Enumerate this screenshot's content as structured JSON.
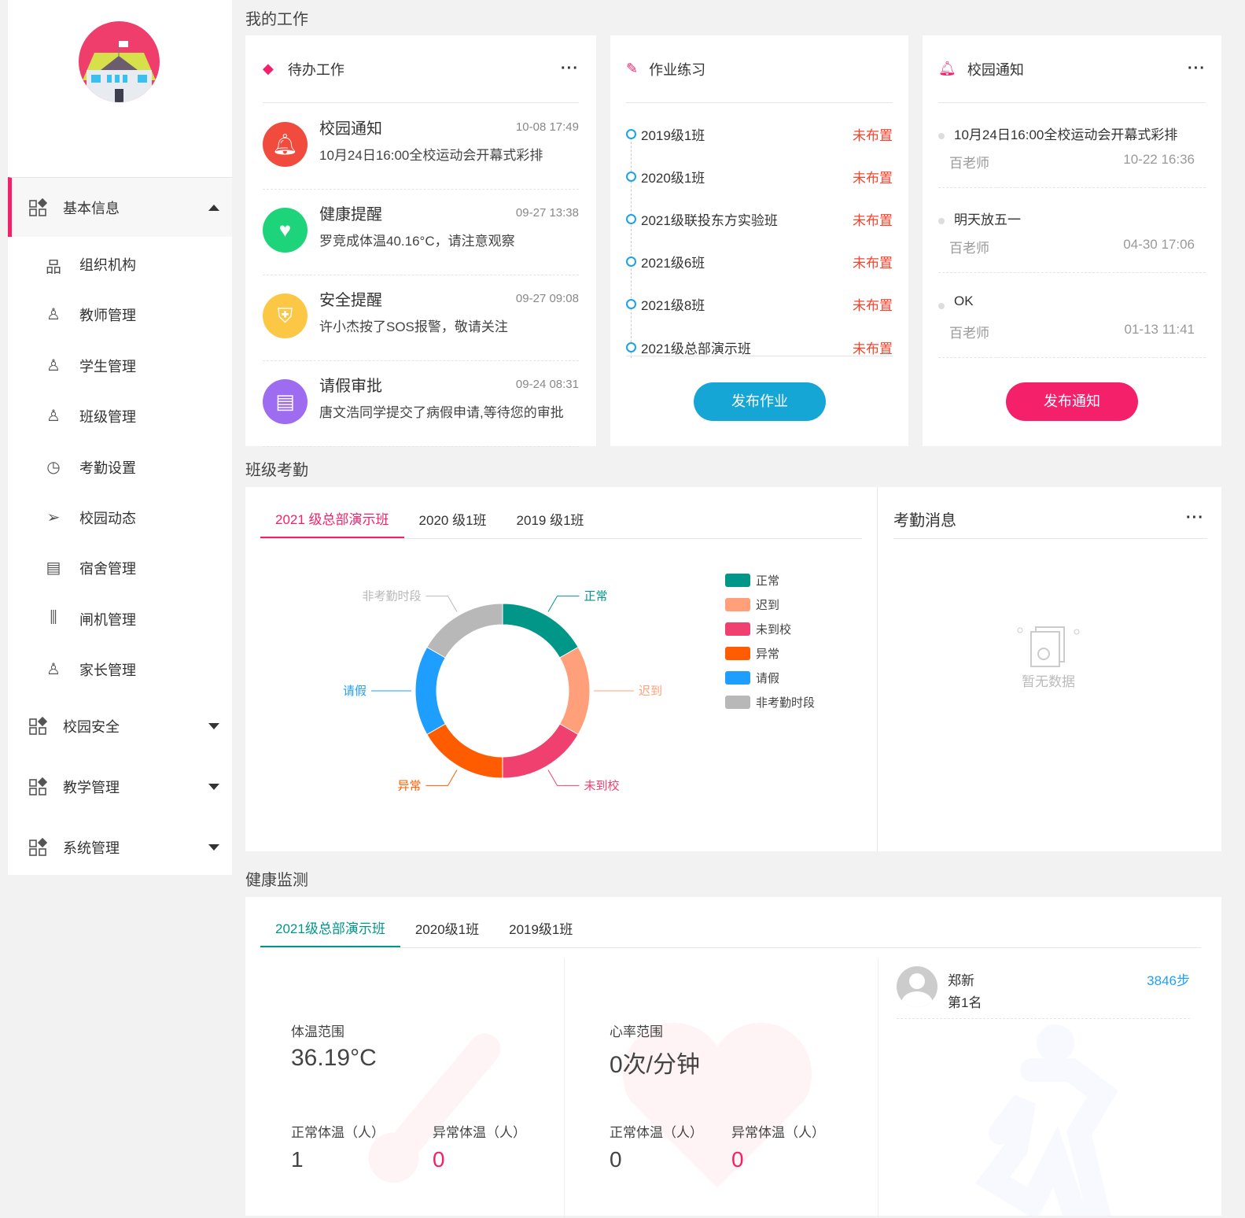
{
  "sidebar": {
    "groups": [
      {
        "label": "基本信息",
        "expanded": true
      },
      {
        "label": "校园安全",
        "expanded": false
      },
      {
        "label": "教学管理",
        "expanded": false
      },
      {
        "label": "系统管理",
        "expanded": false
      }
    ],
    "items": [
      {
        "label": "组织机构",
        "icon": "org-icon"
      },
      {
        "label": "教师管理",
        "icon": "teacher-icon"
      },
      {
        "label": "学生管理",
        "icon": "student-icon"
      },
      {
        "label": "班级管理",
        "icon": "class-icon"
      },
      {
        "label": "考勤设置",
        "icon": "clock-icon"
      },
      {
        "label": "校园动态",
        "icon": "send-icon"
      },
      {
        "label": "宿舍管理",
        "icon": "dorm-icon"
      },
      {
        "label": "闸机管理",
        "icon": "gate-icon"
      },
      {
        "label": "家长管理",
        "icon": "parent-icon"
      }
    ]
  },
  "sections": {
    "work": "我的工作",
    "attendance": "班级考勤",
    "health": "健康监测"
  },
  "todo": {
    "title": "待办工作",
    "items": [
      {
        "title": "校园通知",
        "desc": "10月24日16:00全校运动会开幕式彩排",
        "time": "10-08 17:49",
        "color": "#f04b3c",
        "icon": "bell-icon"
      },
      {
        "title": "健康提醒",
        "desc": "罗竞成体温40.16°C，请注意观察",
        "time": "09-27 13:38",
        "color": "#1ed47a",
        "icon": "heart-icon"
      },
      {
        "title": "安全提醒",
        "desc": "许小杰按了SOS报警，敬请关注",
        "time": "09-27 09:08",
        "color": "#fcc744",
        "icon": "shield-icon"
      },
      {
        "title": "请假审批",
        "desc": "唐文浩同学提交了病假申请,等待您的审批",
        "time": "09-24 08:31",
        "color": "#9d6cf0",
        "icon": "leave-form-icon"
      }
    ]
  },
  "homework": {
    "title": "作业练习",
    "button": "发布作业",
    "items": [
      {
        "cls": "2019级1班",
        "status": "未布置"
      },
      {
        "cls": "2020级1班",
        "status": "未布置"
      },
      {
        "cls": "2021级联投东方实验班",
        "status": "未布置"
      },
      {
        "cls": "2021级6班",
        "status": "未布置"
      },
      {
        "cls": "2021级8班",
        "status": "未布置"
      },
      {
        "cls": "2021级总部演示班",
        "status": "未布置"
      }
    ]
  },
  "notice": {
    "title": "校园通知",
    "button": "发布通知",
    "items": [
      {
        "title": "10月24日16:00全校运动会开幕式彩排",
        "author": "百老师",
        "time": "10-22 16:36"
      },
      {
        "title": "明天放五一",
        "author": "百老师",
        "time": "04-30 17:06"
      },
      {
        "title": "OK",
        "author": "百老师",
        "time": "01-13 11:41"
      }
    ]
  },
  "attendance": {
    "tabs": [
      "2021 级总部演示班",
      "2020 级1班",
      "2019 级1班"
    ],
    "active_tab": 0,
    "message_title": "考勤消息",
    "empty_text": "暂无数据"
  },
  "chart_data": {
    "type": "pie",
    "donut": true,
    "categories": [
      "正常",
      "迟到",
      "未到校",
      "异常",
      "请假",
      "非考勤时段"
    ],
    "values": [
      1,
      1,
      1,
      1,
      1,
      1
    ],
    "colors": [
      "#009688",
      "#ffa07a",
      "#ef4070",
      "#ff5c00",
      "#1e9fff",
      "#b8b8b8"
    ],
    "legend_position": "right"
  },
  "health": {
    "tabs": [
      "2021级总部演示班",
      "2020级1班",
      "2019级1班"
    ],
    "active_tab": 0,
    "temp": {
      "label": "体温范围",
      "value": "36.19°C",
      "normal_label": "正常体温（人）",
      "abnormal_label": "异常体温（人）",
      "normal": "1",
      "abnormal": "0"
    },
    "heart": {
      "label": "心率范围",
      "value": "0次/分钟",
      "normal_label": "正常体温（人）",
      "abnormal_label": "异常体温（人）",
      "normal": "0",
      "abnormal": "0"
    },
    "steps": {
      "name": "郑新",
      "rank": "第1名",
      "steps": "3846步"
    }
  },
  "colors": {
    "accent": "#f5206a",
    "blue": "#1aa3e8",
    "teal": "#009688",
    "red": "#f5432c"
  }
}
